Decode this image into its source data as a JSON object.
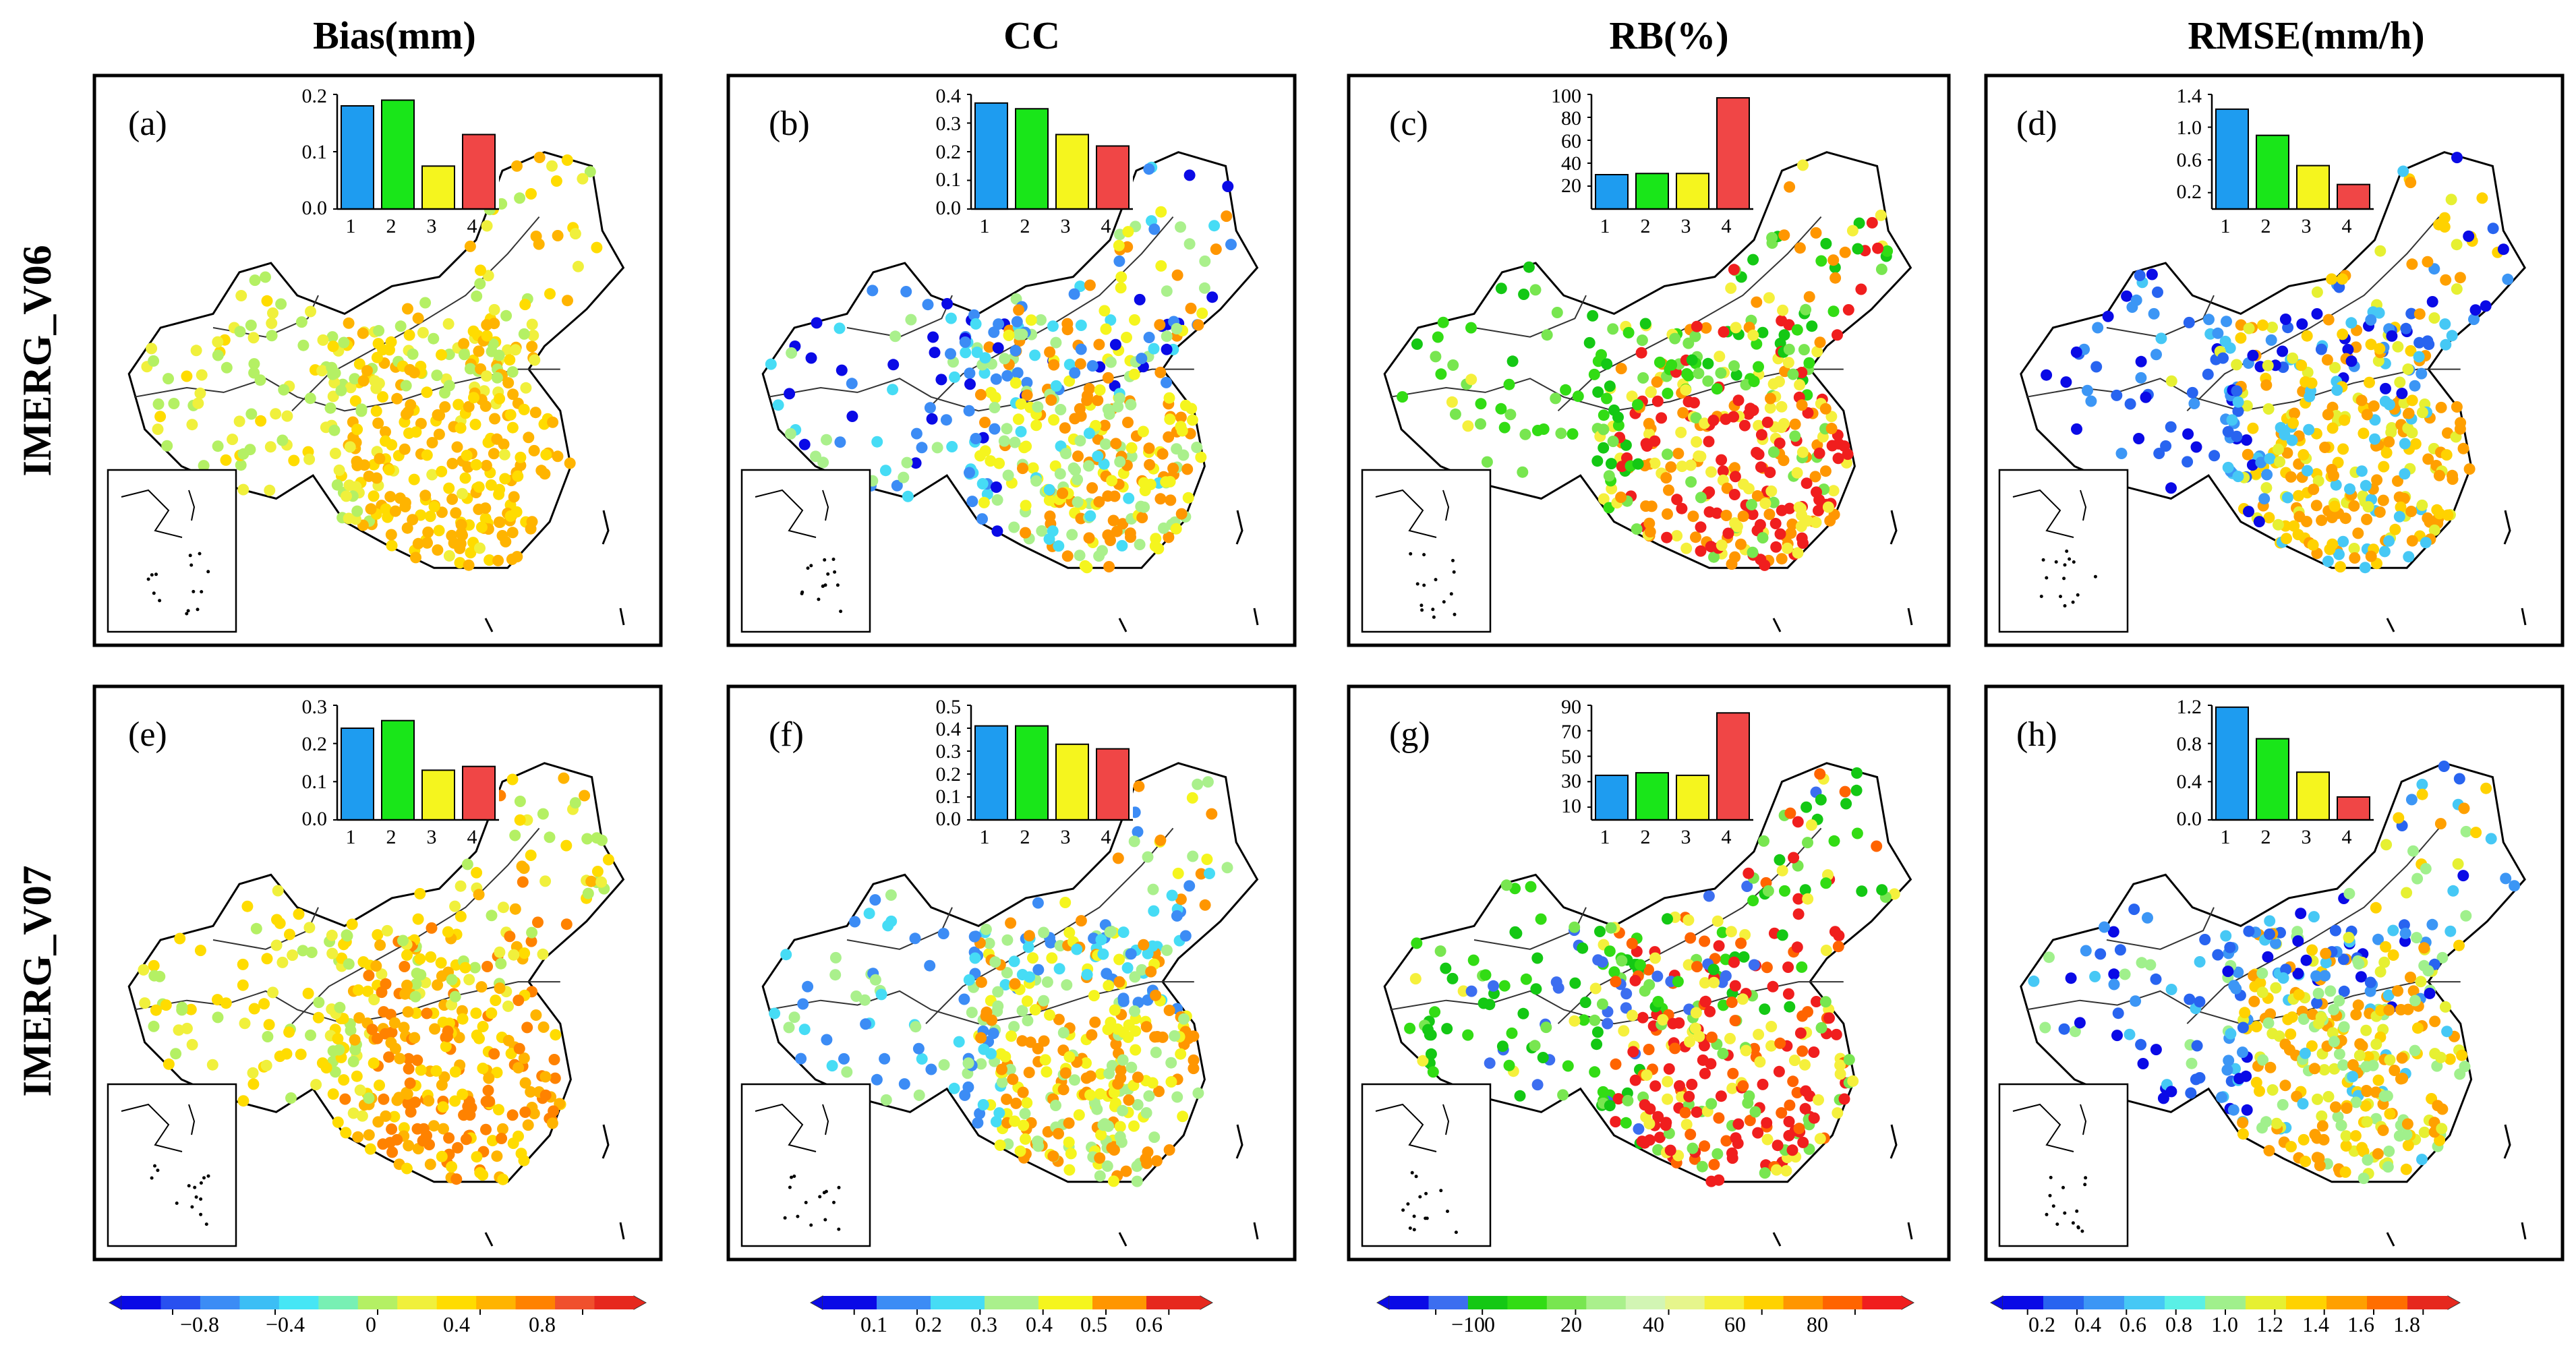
{
  "figure": {
    "column_titles": [
      "Bias(mm)",
      "CC",
      "RB(%)",
      "RMSE(mm/h)"
    ],
    "row_titles": [
      "IMERG_V06",
      "IMERG_V07"
    ]
  },
  "chart_data": [
    {
      "type": "bar",
      "panel": "(a)",
      "column": "Bias(mm)",
      "row": "IMERG_V06",
      "categories": [
        "1",
        "2",
        "3",
        "4"
      ],
      "values": [
        0.18,
        0.19,
        0.075,
        0.13
      ],
      "yticks": [
        "0.0",
        "0.1",
        "0.2"
      ],
      "ylim": [
        0,
        0.2
      ]
    },
    {
      "type": "bar",
      "panel": "(b)",
      "column": "CC",
      "row": "IMERG_V06",
      "categories": [
        "1",
        "2",
        "3",
        "4"
      ],
      "values": [
        0.37,
        0.35,
        0.26,
        0.22
      ],
      "yticks": [
        "0.0",
        "0.1",
        "0.2",
        "0.3",
        "0.4"
      ],
      "ylim": [
        0,
        0.4
      ]
    },
    {
      "type": "bar",
      "panel": "(c)",
      "column": "RB(%)",
      "row": "IMERG_V06",
      "categories": [
        "1",
        "2",
        "3",
        "4"
      ],
      "values": [
        30,
        31,
        31,
        97
      ],
      "yticks": [
        "20",
        "40",
        "60",
        "80",
        "100"
      ],
      "ylim": [
        0,
        100
      ]
    },
    {
      "type": "bar",
      "panel": "(d)",
      "column": "RMSE(mm/h)",
      "row": "IMERG_V06",
      "categories": [
        "1",
        "2",
        "3",
        "4"
      ],
      "values": [
        1.22,
        0.9,
        0.53,
        0.3
      ],
      "yticks": [
        "0.2",
        "0.6",
        "1.0",
        "1.4"
      ],
      "ylim": [
        0,
        1.4
      ]
    },
    {
      "type": "bar",
      "panel": "(e)",
      "column": "Bias(mm)",
      "row": "IMERG_V07",
      "categories": [
        "1",
        "2",
        "3",
        "4"
      ],
      "values": [
        0.24,
        0.26,
        0.13,
        0.14
      ],
      "yticks": [
        "0.0",
        "0.1",
        "0.2",
        "0.3"
      ],
      "ylim": [
        0,
        0.3
      ]
    },
    {
      "type": "bar",
      "panel": "(f)",
      "column": "CC",
      "row": "IMERG_V07",
      "categories": [
        "1",
        "2",
        "3",
        "4"
      ],
      "values": [
        0.41,
        0.41,
        0.33,
        0.31
      ],
      "yticks": [
        "0.0",
        "0.1",
        "0.2",
        "0.3",
        "0.4",
        "0.5"
      ],
      "ylim": [
        0,
        0.5
      ]
    },
    {
      "type": "bar",
      "panel": "(g)",
      "column": "RB(%)",
      "row": "IMERG_V07",
      "categories": [
        "1",
        "2",
        "3",
        "4"
      ],
      "values": [
        35,
        37,
        35,
        84
      ],
      "yticks": [
        "10",
        "30",
        "50",
        "70",
        "90"
      ],
      "ylim": [
        0,
        90
      ]
    },
    {
      "type": "bar",
      "panel": "(h)",
      "column": "RMSE(mm/h)",
      "row": "IMERG_V07",
      "categories": [
        "1",
        "2",
        "3",
        "4"
      ],
      "values": [
        1.18,
        0.85,
        0.5,
        0.24
      ],
      "yticks": [
        "0.0",
        "0.4",
        "0.8",
        "1.2"
      ],
      "ylim": [
        0,
        1.2
      ]
    }
  ],
  "bar_colors": [
    "#1e9cf0",
    "#19e619",
    "#f5f51e",
    "#f04646"
  ],
  "colorbars": [
    {
      "column": "Bias(mm)",
      "ticks": [
        "−0.8",
        "−0.4",
        "0",
        "0.4",
        "0.8"
      ],
      "tick_values": [
        -0.8,
        -0.4,
        0,
        0.4,
        0.8
      ],
      "range": [
        -1.0,
        1.0
      ],
      "colors": [
        "#0a0ae6",
        "#2850f0",
        "#3c8cf5",
        "#3cbef5",
        "#46e6f5",
        "#78f0b4",
        "#b4f064",
        "#f0f03c",
        "#ffdc00",
        "#ffb400",
        "#ff8200",
        "#f0502d",
        "#e6281e"
      ]
    },
    {
      "column": "CC",
      "ticks": [
        "0.1",
        "0.2",
        "0.3",
        "0.4",
        "0.5",
        "0.6"
      ],
      "tick_values": [
        0.1,
        0.2,
        0.3,
        0.4,
        0.5,
        0.6
      ],
      "range": [
        0.05,
        0.65
      ],
      "colors": [
        "#0a0ae6",
        "#3c8cf5",
        "#46dcf5",
        "#aaf08c",
        "#f5f51e",
        "#ff9600",
        "#e6281e"
      ]
    },
    {
      "column": "RB(%)",
      "ticks": [
        "−10",
        "0",
        "20",
        "40",
        "60",
        "80"
      ],
      "tick_values": [
        -10,
        0,
        20,
        40,
        60,
        80
      ],
      "range": [
        -20,
        90
      ],
      "colors": [
        "#0a0ae6",
        "#3c6ef0",
        "#14c814",
        "#32dc14",
        "#78e650",
        "#aaf08c",
        "#d2f5b4",
        "#e6f58c",
        "#f5f03c",
        "#ffd200",
        "#ff9600",
        "#ff6400",
        "#f01e1e"
      ]
    },
    {
      "column": "RMSE(mm/h)",
      "ticks": [
        "0.2",
        "0.4",
        "0.6",
        "0.8",
        "1.0",
        "1.2",
        "1.4",
        "1.6",
        "1.8"
      ],
      "tick_values": [
        0.2,
        0.4,
        0.6,
        0.8,
        1.0,
        1.2,
        1.4,
        1.6,
        1.8
      ],
      "range": [
        0.1,
        1.9
      ],
      "colors": [
        "#0a0ae6",
        "#2864f0",
        "#3c96f5",
        "#46c8f5",
        "#5af0e6",
        "#a0f08c",
        "#e6f032",
        "#ffd200",
        "#ffa000",
        "#ff6e00",
        "#e6281e"
      ]
    }
  ],
  "maps": [
    {
      "panel": "(a)",
      "palette": [
        "#b4f064",
        "#f0f03c",
        "#ffdc00",
        "#ffb400"
      ]
    },
    {
      "panel": "(b)",
      "palette": [
        "#0a0ae6",
        "#3c8cf5",
        "#46dcf5",
        "#aaf08c",
        "#f5f51e",
        "#ff9600"
      ]
    },
    {
      "panel": "(c)",
      "palette": [
        "#14c814",
        "#32dc14",
        "#78e650",
        "#f5f03c",
        "#ff9600",
        "#f01e1e"
      ]
    },
    {
      "panel": "(d)",
      "palette": [
        "#0a0ae6",
        "#2864f0",
        "#3c96f5",
        "#46c8f5",
        "#e6f032",
        "#ffd200",
        "#ffa000"
      ]
    },
    {
      "panel": "(e)",
      "palette": [
        "#b4f064",
        "#f0f03c",
        "#ffdc00",
        "#ffb400",
        "#ff8200"
      ]
    },
    {
      "panel": "(f)",
      "palette": [
        "#3c8cf5",
        "#46dcf5",
        "#aaf08c",
        "#f5f51e",
        "#ff9600"
      ]
    },
    {
      "panel": "(g)",
      "palette": [
        "#3c6ef0",
        "#14c814",
        "#32dc14",
        "#78e650",
        "#f5f03c",
        "#ff6400",
        "#f01e1e"
      ]
    },
    {
      "panel": "(h)",
      "palette": [
        "#0a0ae6",
        "#2864f0",
        "#3c96f5",
        "#46c8f5",
        "#a0f08c",
        "#e6f032",
        "#ffd200",
        "#ffa000"
      ]
    }
  ]
}
